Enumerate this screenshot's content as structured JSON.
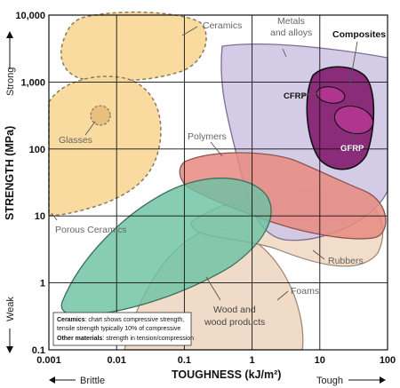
{
  "chart_data": {
    "type": "scatter",
    "title": "",
    "xlabel": "TOUGHNESS (kJ/m²)",
    "ylabel": "STRENGTH (MPa)",
    "x_scale": "log",
    "y_scale": "log",
    "xlim": [
      0.001,
      100
    ],
    "ylim": [
      0.1,
      10000
    ],
    "grid": true,
    "x_ticks": [
      "0.001",
      "0.01",
      "0.1",
      "1",
      "10",
      "100"
    ],
    "y_ticks": [
      "0.1",
      "1",
      "10",
      "100",
      "1,000",
      "10,000"
    ],
    "x_end_labels": {
      "low": "Brittle",
      "high": "Tough"
    },
    "y_end_labels": {
      "low": "Weak",
      "high": "Strong"
    },
    "regions": [
      {
        "name": "Ceramics",
        "color": "#f9d99a"
      },
      {
        "name": "Glasses",
        "color": "#f9d99a"
      },
      {
        "name": "Porous Ceramics",
        "color": "#f9d99a"
      },
      {
        "name": "Metals and alloys",
        "color": "#cfc6e4"
      },
      {
        "name": "Composites",
        "color": "#8b2c7b"
      },
      {
        "name": "CFRP",
        "color": "#b0358f"
      },
      {
        "name": "GFRP",
        "color": "#b0358f"
      },
      {
        "name": "Polymers",
        "color": "#e88a80"
      },
      {
        "name": "Rubbers",
        "color": "#f0d9c4"
      },
      {
        "name": "Foams",
        "color": "#eed6c2"
      },
      {
        "name": "Wood and wood products",
        "color": "#6cc2a3"
      }
    ],
    "note": {
      "line1_bold": "Ceramics",
      "line1": ": chart shows compressive strength,",
      "line2": "tensile strength typically 10% of compressive",
      "line3_bold": "Other materials",
      "line3": ": strength in tension/compression"
    }
  }
}
